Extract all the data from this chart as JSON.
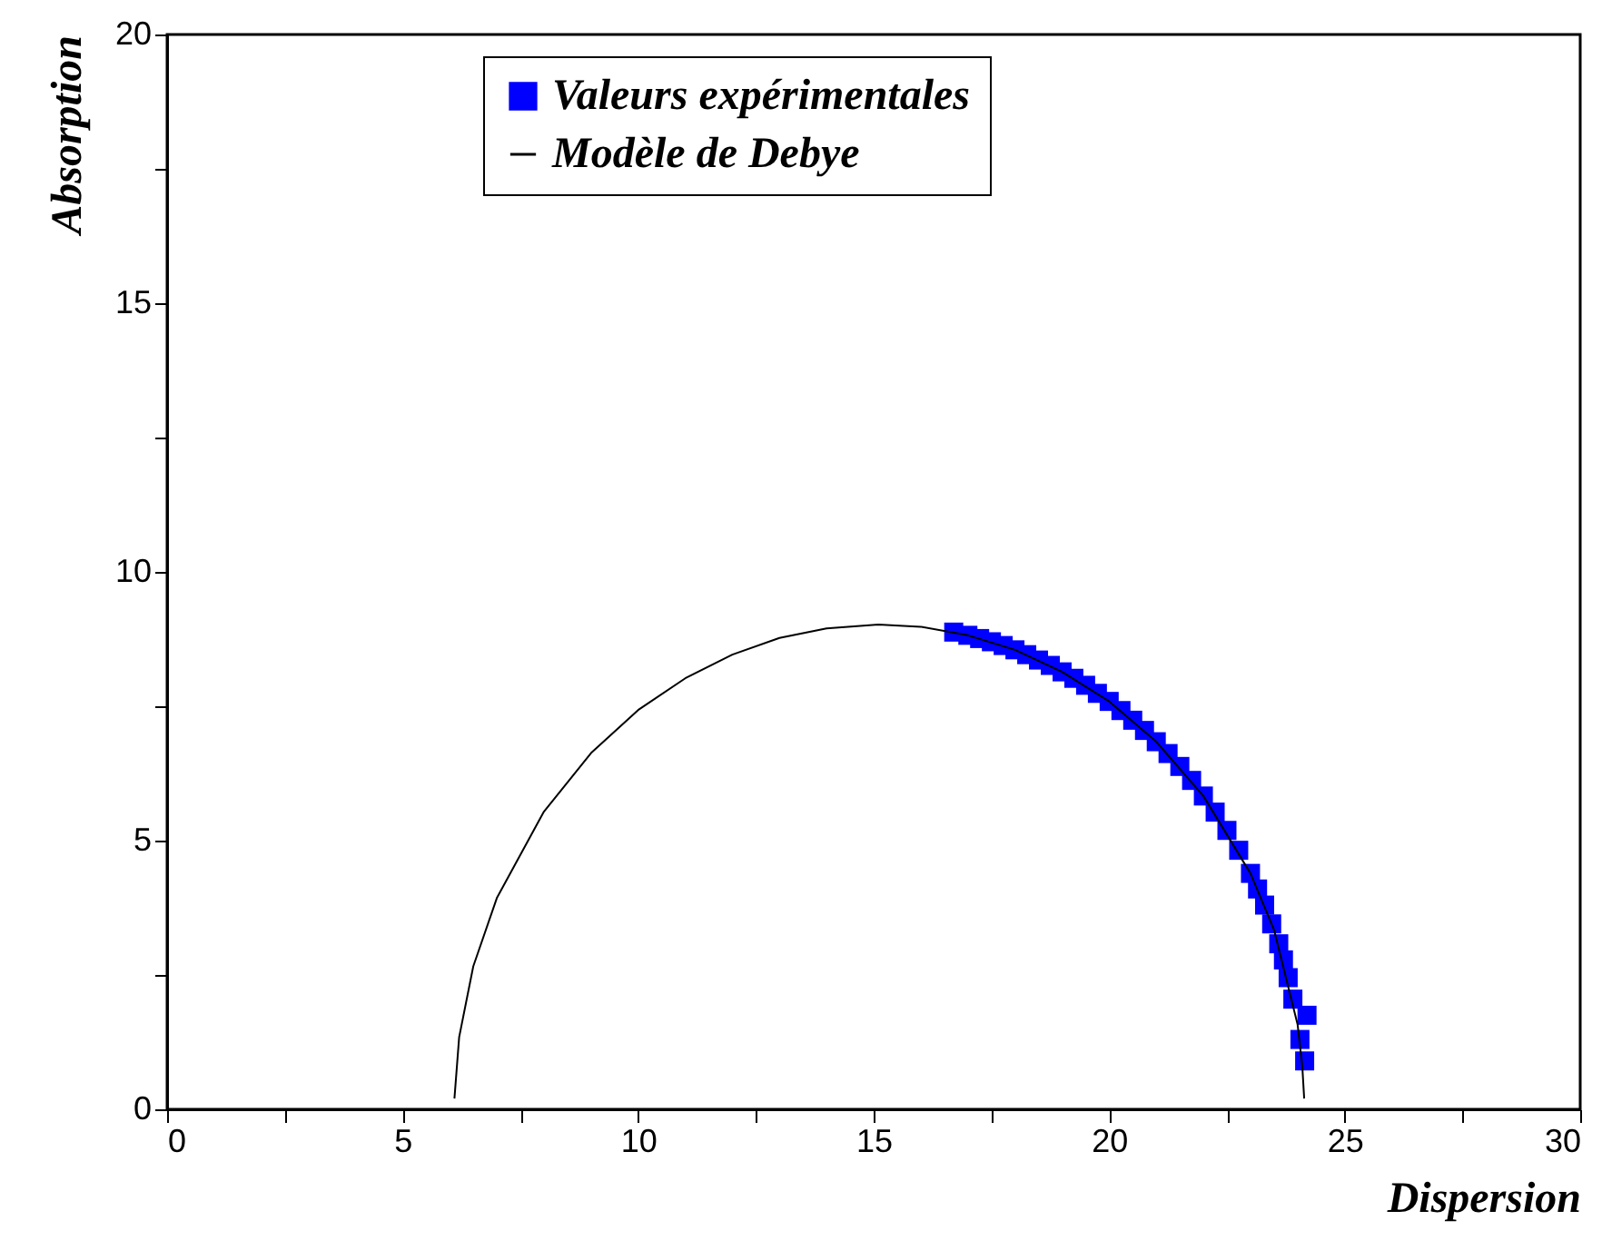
{
  "chart_data": {
    "type": "scatter",
    "xlabel": "Dispersion",
    "ylabel": "Absorption",
    "xlim": [
      0,
      30
    ],
    "ylim": [
      0,
      20
    ],
    "xticks": [
      0,
      {
        "value": 2.5,
        "label": null
      },
      5,
      {
        "value": 7.5,
        "label": null
      },
      10,
      {
        "value": 12.5,
        "label": null
      },
      15,
      {
        "value": 17.5,
        "label": null
      },
      20,
      {
        "value": 22.5,
        "label": null
      },
      25,
      {
        "value": 27.5,
        "label": null
      },
      30
    ],
    "yticks": [
      0,
      {
        "value": 2.5,
        "label": null
      },
      5,
      {
        "value": 7.5,
        "label": null
      },
      10,
      {
        "value": 12.5,
        "label": null
      },
      15,
      {
        "value": 17.5,
        "label": null
      },
      20
    ],
    "grid": false,
    "legend": "top",
    "series": [
      {
        "name": "Valeurs expérimentales",
        "type": "scatter",
        "marker": "square",
        "color": "#0000ff",
        "x": [
          16.7,
          17.0,
          17.25,
          17.5,
          17.75,
          18.0,
          18.25,
          18.5,
          18.75,
          19.0,
          19.25,
          19.5,
          19.75,
          20.0,
          20.25,
          20.5,
          20.75,
          21.0,
          21.25,
          21.5,
          21.75,
          22.0,
          22.25,
          22.5,
          22.75,
          23.0,
          23.15,
          23.3,
          23.45,
          23.6,
          23.7,
          23.8,
          23.9,
          24.05,
          24.15,
          24.2
        ],
        "values": [
          8.88,
          8.82,
          8.76,
          8.7,
          8.63,
          8.55,
          8.46,
          8.36,
          8.26,
          8.14,
          8.02,
          7.89,
          7.74,
          7.59,
          7.42,
          7.24,
          7.05,
          6.84,
          6.62,
          6.38,
          6.12,
          5.83,
          5.53,
          5.19,
          4.82,
          4.39,
          4.1,
          3.8,
          3.45,
          3.08,
          2.78,
          2.45,
          2.05,
          1.3,
          0.9,
          1.75
        ]
      },
      {
        "name": "Modèle de Debye",
        "type": "line",
        "color": "#000000",
        "x": [
          6.1,
          6.2,
          6.5,
          7,
          8,
          9,
          10,
          11,
          12,
          13,
          14,
          15.1,
          16,
          17,
          18,
          19,
          20,
          21,
          22,
          23,
          23.5,
          24,
          24.1,
          24.14
        ],
        "values": [
          0.2,
          1.34,
          2.66,
          3.93,
          5.54,
          6.63,
          7.43,
          8.02,
          8.46,
          8.77,
          8.95,
          9.02,
          8.98,
          8.82,
          8.55,
          8.14,
          7.59,
          6.84,
          5.83,
          4.39,
          3.34,
          1.58,
          0.8,
          0.2
        ]
      }
    ]
  }
}
